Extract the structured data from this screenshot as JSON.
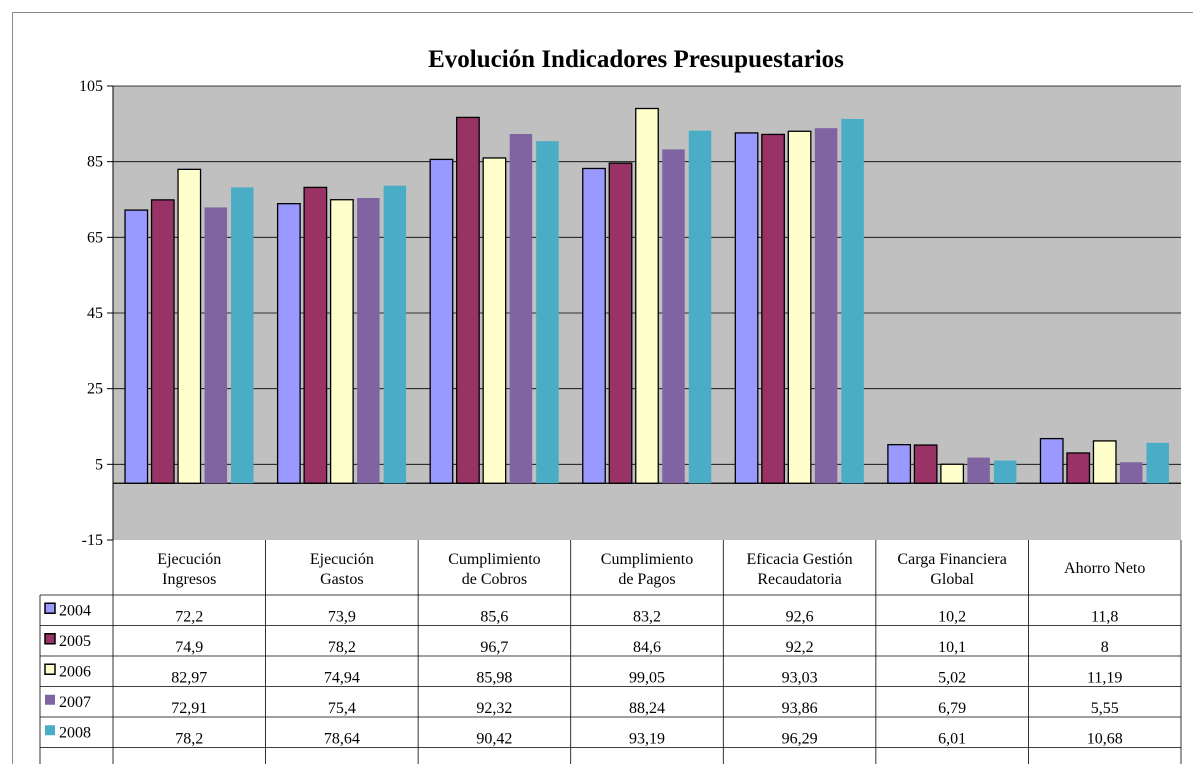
{
  "chart_data": {
    "type": "bar",
    "title": "Evolución Indicadores Presupuestarios",
    "xlabel": "",
    "ylabel": "",
    "ylim": [
      -15,
      105
    ],
    "yticks": [
      -15,
      5,
      25,
      45,
      65,
      85,
      105
    ],
    "grid": true,
    "legend": "table-left",
    "categories": [
      [
        "Ejecución",
        "Ingresos"
      ],
      [
        "Ejecución",
        "Gastos"
      ],
      [
        "Cumplimiento",
        "de Cobros"
      ],
      [
        "Cumplimiento",
        "de Pagos"
      ],
      [
        "Eficacia Gestión",
        "Recaudatoria"
      ],
      [
        "Carga Financiera",
        "Global"
      ],
      [
        "Ahorro Neto"
      ]
    ],
    "series": [
      {
        "name": "2004",
        "color": "#9999ff",
        "values": [
          72.2,
          73.9,
          85.6,
          83.2,
          92.6,
          10.2,
          11.8
        ],
        "labels": [
          "72,2",
          "73,9",
          "85,6",
          "83,2",
          "92,6",
          "10,2",
          "11,8"
        ]
      },
      {
        "name": "2005",
        "color": "#993366",
        "values": [
          74.9,
          78.2,
          96.7,
          84.6,
          92.2,
          10.1,
          8
        ],
        "labels": [
          "74,9",
          "78,2",
          "96,7",
          "84,6",
          "92,2",
          "10,1",
          "8"
        ]
      },
      {
        "name": "2006",
        "color": "#ffffcc",
        "values": [
          82.97,
          74.94,
          85.98,
          99.05,
          93.03,
          5.02,
          11.19
        ],
        "labels": [
          "82,97",
          "74,94",
          "85,98",
          "99,05",
          "93,03",
          "5,02",
          "11,19"
        ]
      },
      {
        "name": "2007",
        "color": "#8064a2",
        "values": [
          72.91,
          75.4,
          92.32,
          88.24,
          93.86,
          6.79,
          5.55
        ],
        "labels": [
          "72,91",
          "75,4",
          "92,32",
          "88,24",
          "93,86",
          "6,79",
          "5,55"
        ]
      },
      {
        "name": "2008",
        "color": "#4bacc6",
        "values": [
          78.2,
          78.64,
          90.42,
          93.19,
          96.29,
          6.01,
          10.68
        ],
        "labels": [
          "78,2",
          "78,64",
          "90,42",
          "93,19",
          "96,29",
          "6,01",
          "10,68"
        ]
      }
    ],
    "plot_background": "#c0c0c0"
  }
}
